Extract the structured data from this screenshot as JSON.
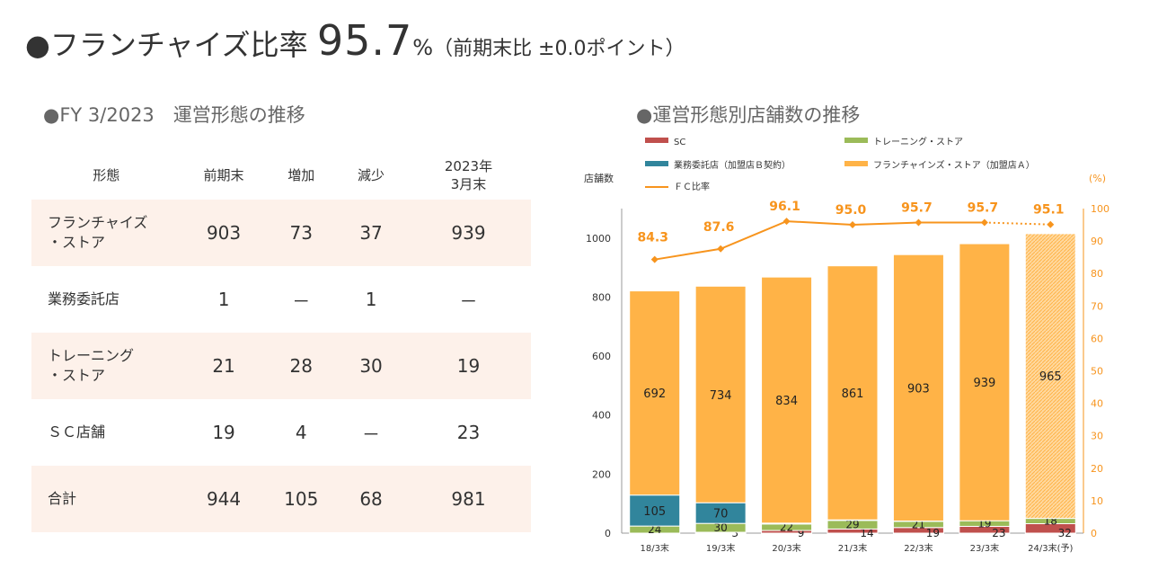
{
  "header": {
    "bullet": "●",
    "title_prefix": "フランチャイズ比率",
    "ratio": "95.7",
    "ratio_unit": "%",
    "note": "（前期末比 ±0.0ポイント）"
  },
  "left": {
    "subtitle": "●FY 3/2023　運営形態の推移",
    "columns": [
      "形態",
      "前期末",
      "増加",
      "減少",
      "2023年\n3月末"
    ],
    "rows": [
      {
        "name": "フランチャイズ\n・ストア",
        "values": [
          "903",
          "73",
          "37",
          "939"
        ]
      },
      {
        "name": "業務委託店",
        "values": [
          "1",
          "－",
          "1",
          "－"
        ]
      },
      {
        "name": "トレーニング\n・ストア",
        "values": [
          "21",
          "28",
          "30",
          "19"
        ]
      },
      {
        "name": "ＳＣ店舗",
        "values": [
          "19",
          "4",
          "－",
          "23"
        ]
      },
      {
        "name": "合計",
        "values": [
          "944",
          "105",
          "68",
          "981"
        ]
      }
    ]
  },
  "right": {
    "subtitle": "●運営形態別店舗数の推移"
  },
  "chart_data": {
    "type": "bar",
    "stacked": true,
    "categories": [
      "18/3末",
      "19/3末",
      "20/3末",
      "21/3末",
      "22/3末",
      "23/3末",
      "24/3末(予)"
    ],
    "ylabel": "店舗数",
    "y2label": "(%)",
    "ylim": [
      0,
      1100
    ],
    "yticks": [
      0,
      200,
      400,
      600,
      800,
      1000
    ],
    "y2lim": [
      0,
      100
    ],
    "y2ticks": [
      0,
      10,
      20,
      30,
      40,
      50,
      60,
      70,
      80,
      90,
      100
    ],
    "series": [
      {
        "name": "SC",
        "color": "#c0504d",
        "values": [
          null,
          3,
          9,
          14,
          19,
          23,
          32
        ]
      },
      {
        "name": "トレーニング・ストア",
        "color": "#9bbb59",
        "values": [
          24,
          30,
          22,
          29,
          21,
          19,
          18
        ]
      },
      {
        "name": "業務委託店（加盟店Ｂ契約）",
        "color": "#31859c",
        "values": [
          105,
          70,
          3,
          2,
          1,
          0,
          0
        ]
      },
      {
        "name": "フランチャインズ・ストア（加盟店Ａ）",
        "color": "#ffb347",
        "values": [
          692,
          734,
          834,
          861,
          903,
          939,
          965
        ]
      }
    ],
    "line": {
      "name": "ＦＣ比率",
      "color": "#f7941d",
      "axis": "right",
      "values": [
        84.3,
        87.6,
        96.1,
        95.0,
        95.7,
        95.7,
        95.1
      ],
      "labels": [
        "84.3",
        "87.6",
        "96.1",
        "95.0",
        "95.7",
        "95.7",
        "95.1"
      ]
    },
    "forecast_last": true,
    "legend": "top"
  }
}
